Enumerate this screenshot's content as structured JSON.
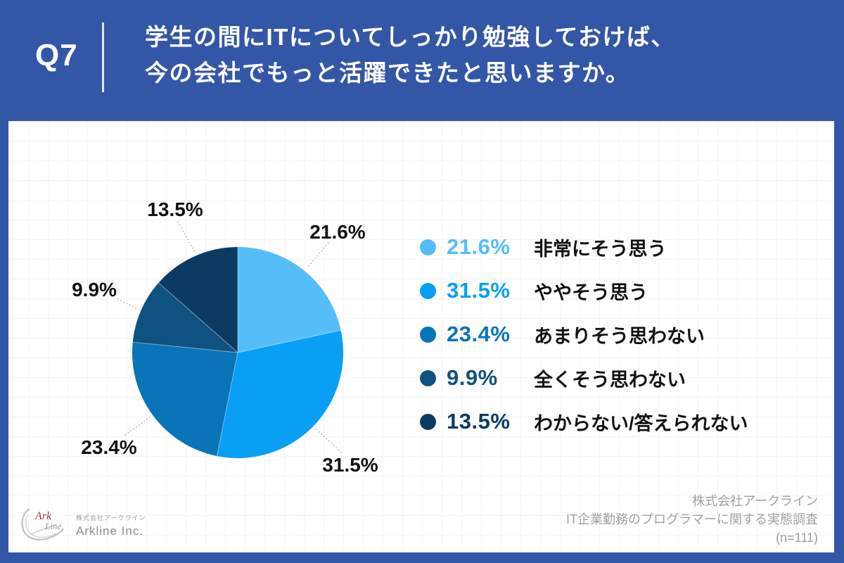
{
  "header": {
    "question_number": "Q7",
    "title_line1": "学生の間にITについてしっかり勉強しておけば、",
    "title_line2": "今の会社でもっと活躍できたと思いますか。"
  },
  "chart_data": {
    "type": "pie",
    "title": "学生の間にITについてしっかり勉強しておけば、今の会社でもっと活躍できたと思いますか。",
    "start_angle": "top",
    "direction": "clockwise",
    "legend_position": "right",
    "sample_size_note": "(n=111)",
    "segments": [
      {
        "label": "非常にそう思う",
        "value": 21.6,
        "pct_label": "21.6%",
        "color": "#55bef8"
      },
      {
        "label": "ややそう思う",
        "value": 31.5,
        "pct_label": "31.5%",
        "color": "#089ff5"
      },
      {
        "label": "あまりそう思わない",
        "value": 23.4,
        "pct_label": "23.4%",
        "color": "#0974b8"
      },
      {
        "label": "全くそう思わない",
        "value": 9.9,
        "pct_label": "9.9%",
        "color": "#0f5180"
      },
      {
        "label": "わからない/答えられない",
        "value": 13.5,
        "pct_label": "13.5%",
        "color": "#0d3a62"
      }
    ]
  },
  "footer": {
    "source_line1": "株式会社アークライン",
    "source_line2": "IT企業勤務のプログラマーに関する実態調査",
    "source_line3": "(n=111)",
    "logo": {
      "mark_word1": "Ark",
      "mark_word2": "Line",
      "company_ja": "株式会社アークライン",
      "company_en": "Arkline Inc."
    }
  },
  "colors": {
    "page_bg": "#3356a6",
    "card_bg": "#ffffff",
    "pie_label_text": "#111111",
    "legend_label_text": "#111111",
    "leader_line": "#9b9b9b",
    "source_text": "#a0a0a0"
  }
}
